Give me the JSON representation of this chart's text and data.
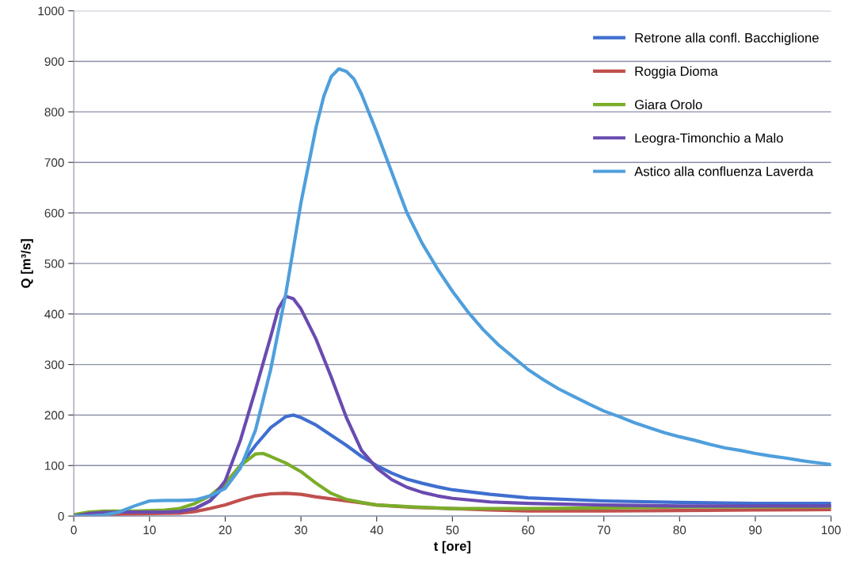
{
  "chart_data": {
    "type": "line",
    "xlabel": "t [ore]",
    "ylabel": "Q [m³/s]",
    "xlim": [
      0,
      100
    ],
    "ylim": [
      0,
      1000
    ],
    "xticks": [
      0,
      10,
      20,
      30,
      40,
      50,
      60,
      70,
      80,
      90,
      100
    ],
    "yticks": [
      0,
      100,
      200,
      300,
      400,
      500,
      600,
      700,
      800,
      900,
      1000
    ],
    "grid": "y",
    "legend": "top right",
    "marker": "none",
    "line_style": "solid",
    "series": [
      {
        "name": "Retrone alla confl. Bacchiglione",
        "color": "#3f6fcf",
        "x": [
          0,
          10,
          14,
          16,
          18,
          20,
          22,
          24,
          26,
          28,
          29,
          30,
          32,
          34,
          36,
          38,
          40,
          42,
          44,
          46,
          48,
          50,
          55,
          60,
          70,
          80,
          90,
          100
        ],
        "values": [
          2,
          8,
          9,
          15,
          30,
          60,
          100,
          140,
          175,
          197,
          200,
          195,
          180,
          160,
          140,
          118,
          100,
          85,
          73,
          65,
          58,
          52,
          43,
          36,
          30,
          27,
          25,
          25
        ]
      },
      {
        "name": "Roggia Dioma",
        "color": "#c0504d",
        "x": [
          0,
          4,
          10,
          14,
          16,
          18,
          20,
          22,
          24,
          26,
          28,
          30,
          32,
          34,
          36,
          38,
          40,
          45,
          50,
          55,
          60,
          70,
          80,
          90,
          100
        ],
        "values": [
          0,
          3,
          5,
          6,
          9,
          15,
          22,
          32,
          40,
          44,
          45,
          43,
          38,
          34,
          30,
          26,
          22,
          17,
          15,
          12,
          10,
          10,
          11,
          12,
          13
        ]
      },
      {
        "name": "Giara Orolo",
        "color": "#7aad2a",
        "x": [
          0,
          2,
          4,
          8,
          12,
          14,
          16,
          18,
          20,
          22,
          24,
          25,
          26,
          28,
          30,
          32,
          34,
          36,
          38,
          40,
          45,
          50,
          60,
          70,
          80,
          90,
          100
        ],
        "values": [
          3,
          8,
          10,
          10,
          12,
          15,
          25,
          40,
          65,
          100,
          123,
          124,
          118,
          105,
          88,
          65,
          45,
          33,
          27,
          22,
          18,
          15,
          15,
          16,
          18,
          18,
          18
        ]
      },
      {
        "name": "Leogra-Timonchio a Malo",
        "color": "#6a4bb0",
        "x": [
          0,
          2,
          4,
          6,
          8,
          10,
          12,
          14,
          16,
          18,
          20,
          22,
          24,
          26,
          27,
          28,
          29,
          30,
          32,
          34,
          36,
          38,
          40,
          42,
          44,
          46,
          48,
          50,
          55,
          60,
          70,
          80,
          90,
          100
        ],
        "values": [
          0,
          5,
          7,
          8,
          8,
          8,
          8,
          9,
          15,
          30,
          70,
          150,
          250,
          355,
          410,
          435,
          430,
          410,
          350,
          275,
          195,
          130,
          95,
          72,
          57,
          47,
          40,
          35,
          28,
          25,
          22,
          20,
          20,
          20
        ]
      },
      {
        "name": "Astico alla confluenza Laverda",
        "color": "#4f9fdc",
        "x": [
          0,
          2,
          4,
          6,
          8,
          10,
          12,
          14,
          16,
          18,
          20,
          22,
          24,
          26,
          28,
          30,
          32,
          33,
          34,
          35,
          36,
          37,
          38,
          40,
          42,
          44,
          46,
          48,
          50,
          52,
          54,
          56,
          58,
          60,
          62,
          64,
          66,
          68,
          70,
          72,
          74,
          76,
          78,
          80,
          82,
          84,
          86,
          88,
          90,
          92,
          94,
          96,
          98,
          100
        ],
        "values": [
          0,
          0,
          2,
          8,
          20,
          30,
          31,
          31,
          32,
          40,
          55,
          95,
          170,
          290,
          440,
          620,
          770,
          830,
          870,
          885,
          880,
          865,
          835,
          760,
          680,
          600,
          540,
          490,
          445,
          405,
          370,
          340,
          315,
          290,
          270,
          252,
          237,
          222,
          208,
          197,
          185,
          175,
          165,
          157,
          150,
          142,
          135,
          130,
          124,
          119,
          115,
          110,
          106,
          102
        ]
      }
    ]
  }
}
